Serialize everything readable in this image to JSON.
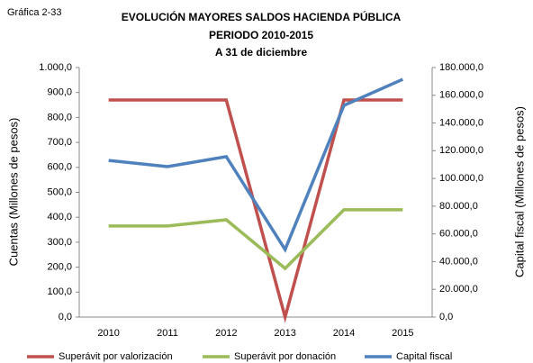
{
  "chart_data": {
    "type": "line",
    "figure_label": "Gráfica 2-33",
    "title": "EVOLUCIÓN MAYORES SALDOS HACIENDA PÚBLICA",
    "subtitle": [
      "PERIODO 2010-2015",
      "A 31 de diciembre"
    ],
    "y_label": "Cuentas (Millones de pesos)",
    "y2_label": "Capital fiscal (Millones de pesos)",
    "categories": [
      "2010",
      "2011",
      "2012",
      "2013",
      "2014",
      "2015"
    ],
    "series": [
      {
        "name": "Superávit por valorización",
        "color": "#c0504d",
        "values": [
          870,
          870,
          870,
          0,
          870,
          870
        ]
      },
      {
        "name": "Superávit por donación",
        "color": "#9bbb59",
        "values": [
          365,
          365,
          390,
          195,
          430,
          430
        ]
      },
      {
        "name": "Capital fiscal",
        "color": "#4f81bd",
        "axis": "y2",
        "values": [
          113000,
          108500,
          115700,
          48700,
          152700,
          171500
        ]
      }
    ],
    "ylim": [
      0,
      1000
    ],
    "yticks": [
      {
        "value": 0,
        "label": "0,0"
      },
      {
        "value": 100,
        "label": "100,0"
      },
      {
        "value": 200,
        "label": "200,0"
      },
      {
        "value": 300,
        "label": "300,0"
      },
      {
        "value": 400,
        "label": "400,0"
      },
      {
        "value": 500,
        "label": "500,0"
      },
      {
        "value": 600,
        "label": "600,0"
      },
      {
        "value": 700,
        "label": "700,0"
      },
      {
        "value": 800,
        "label": "800,0"
      },
      {
        "value": 900,
        "label": "900,0"
      },
      {
        "value": 1000,
        "label": "1.000,0"
      }
    ],
    "y2lim": [
      0,
      180000
    ],
    "y2ticks": [
      {
        "value": 0,
        "label": "0,0"
      },
      {
        "value": 20000,
        "label": "20.000,0"
      },
      {
        "value": 40000,
        "label": "40.000,0"
      },
      {
        "value": 60000,
        "label": "60.000,0"
      },
      {
        "value": 80000,
        "label": "80.000,0"
      },
      {
        "value": 100000,
        "label": "100.000,0"
      },
      {
        "value": 120000,
        "label": "120.000,0"
      },
      {
        "value": 140000,
        "label": "140.000,0"
      },
      {
        "value": 160000,
        "label": "160.000,0"
      },
      {
        "value": 180000,
        "label": "180.000,0"
      }
    ],
    "grid": false,
    "legend": "bottom"
  }
}
